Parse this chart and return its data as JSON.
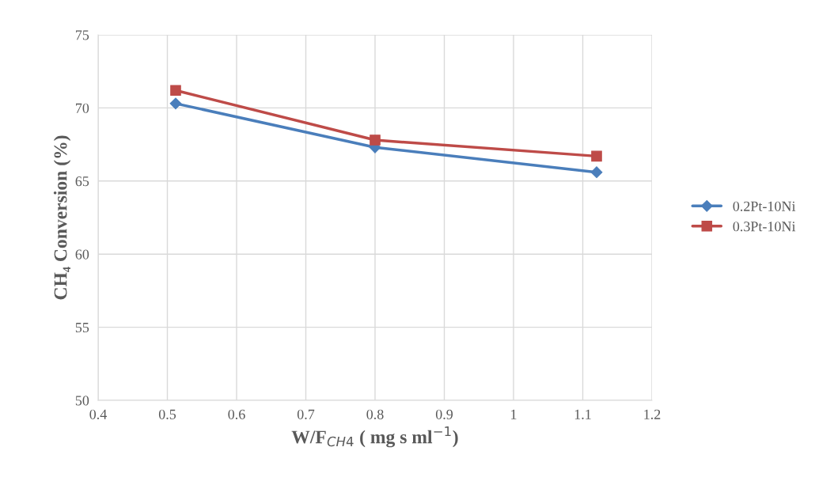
{
  "chart_data": {
    "type": "line",
    "xlabel": "W/F$_{CH4}$ ( mg s ml$^{−1}$)",
    "ylabel": "CH₄ Conversion (%)",
    "x": [
      0.512,
      0.8,
      1.12
    ],
    "series": [
      {
        "name": "0.2Pt-10Ni",
        "color": "#4a7ebb",
        "marker": "diamond",
        "values": [
          70.3,
          67.3,
          65.6
        ]
      },
      {
        "name": "0.3Pt-10Ni",
        "color": "#be4b48",
        "marker": "square",
        "values": [
          71.2,
          67.8,
          66.7
        ]
      }
    ],
    "xlim": [
      0.4,
      1.2
    ],
    "xticks": [
      0.4,
      0.5,
      0.6,
      0.7,
      0.8,
      0.9,
      1,
      1.1,
      1.2
    ],
    "ylim": [
      50,
      75
    ],
    "yticks": [
      50,
      55,
      60,
      65,
      70,
      75
    ],
    "grid": true,
    "legend": "right",
    "line_style": "solid"
  }
}
